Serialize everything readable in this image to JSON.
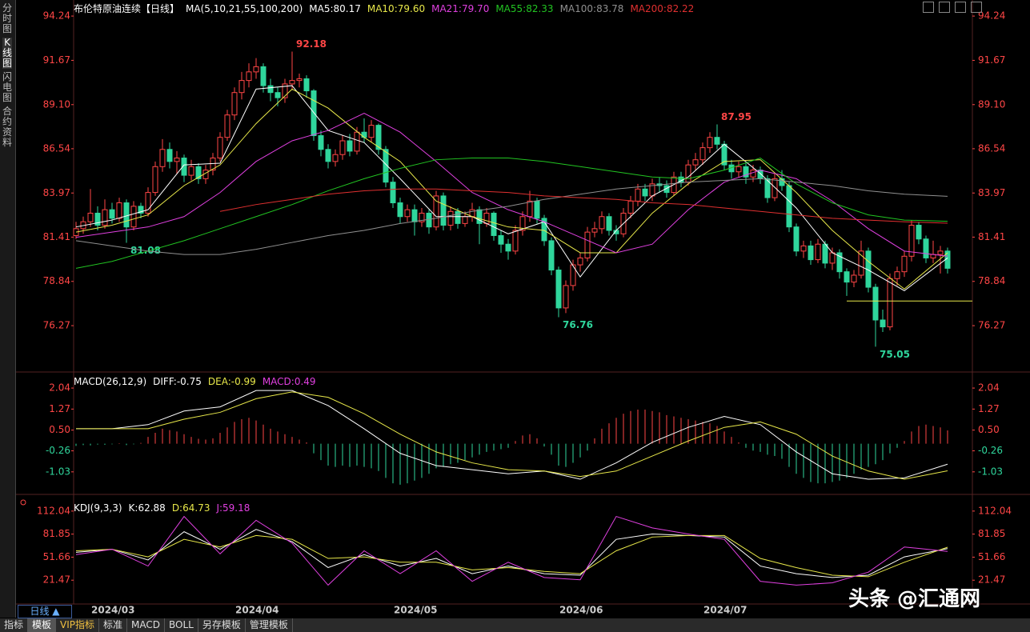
{
  "sidebar": [
    "分时图",
    "K线图",
    "闪电图",
    "合约资料"
  ],
  "chart_data": [
    {
      "type": "candlestick",
      "title": "布伦特原油连续【日线】",
      "subtitle": "MA(5,10,21,55,100,200)",
      "ylim": [
        73.72,
        94.94
      ],
      "yticks": [
        94.24,
        91.67,
        {
          "value": 89.1,
          "label": "89.10"
        },
        86.54,
        83.97,
        81.41,
        78.84,
        76.27
      ],
      "up_color": "#ff4646",
      "down_color": "#2fd69c",
      "open": [
        81.5,
        81.9,
        82.3,
        82.8,
        82.1,
        83.0,
        82.5,
        83.4,
        82.0,
        83.2,
        82.8,
        84.0,
        85.5,
        86.5,
        85.8,
        86.0,
        85.0,
        85.5,
        84.8,
        85.3,
        86.0,
        87.2,
        88.5,
        89.8,
        90.5,
        91.0,
        91.3,
        90.2,
        89.8,
        89.5,
        90.3,
        90.5,
        90.6,
        89.9,
        87.3,
        86.5,
        85.8,
        86.2,
        87.0,
        86.4,
        87.5,
        87.2,
        87.9,
        86.5,
        84.6,
        83.4,
        82.6,
        83.0,
        82.3,
        82.8,
        82.0,
        83.8,
        82.1,
        82.9,
        82.2,
        82.6,
        83.0,
        82.2,
        82.8,
        81.5,
        81.0,
        80.6,
        81.8,
        82.6,
        83.5,
        82.5,
        81.2,
        79.5,
        77.3,
        78.6,
        79.8,
        80.2,
        81.7,
        81.9,
        82.6,
        81.8,
        81.6,
        82.8,
        83.5,
        84.2,
        83.8,
        84.5,
        84.4,
        84.0,
        84.9,
        84.6,
        85.6,
        85.9,
        86.6,
        87.2,
        86.8,
        85.6,
        85.2,
        85.5,
        84.9,
        85.3,
        84.8,
        83.7,
        84.8,
        84.4,
        82.0,
        80.6,
        80.9,
        80.1,
        81.0,
        79.9,
        80.5,
        79.4,
        78.8,
        79.2,
        80.6,
        78.5,
        76.6,
        76.2,
        79.0,
        79.4,
        80.3,
        82.1,
        81.3,
        80.2,
        80.4,
        80.6
      ],
      "high": [
        82.3,
        82.6,
        84.2,
        83.2,
        83.6,
        83.4,
        83.7,
        83.6,
        83.5,
        83.4,
        84.3,
        85.8,
        87.1,
        86.9,
        86.4,
        86.2,
        85.9,
        85.7,
        85.6,
        86.3,
        87.5,
        88.8,
        90.1,
        91.0,
        91.5,
        91.8,
        91.5,
        90.6,
        90.1,
        90.6,
        92.18,
        90.9,
        90.8,
        90.0,
        87.6,
        86.8,
        86.5,
        87.3,
        87.4,
        87.8,
        88.3,
        88.2,
        88.0,
        86.7,
        84.9,
        83.7,
        83.3,
        83.3,
        83.1,
        83.0,
        84.1,
        84.0,
        83.2,
        83.1,
        82.9,
        83.4,
        83.2,
        83.1,
        82.9,
        81.8,
        81.3,
        82.1,
        82.9,
        84.1,
        83.7,
        82.7,
        81.4,
        79.7,
        78.9,
        80.1,
        80.5,
        82.0,
        82.3,
        82.9,
        82.8,
        82.1,
        83.1,
        83.8,
        84.5,
        84.5,
        84.8,
        84.9,
        84.7,
        85.2,
        85.2,
        85.9,
        86.3,
        86.9,
        87.5,
        87.95,
        87.0,
        85.9,
        85.8,
        85.7,
        85.6,
        85.5,
        85.0,
        85.1,
        85.3,
        84.6,
        82.2,
        81.2,
        81.2,
        81.3,
        81.2,
        80.8,
        80.7,
        79.6,
        79.5,
        81.2,
        80.8,
        78.7,
        77.2,
        79.3,
        79.7,
        80.6,
        82.4,
        82.3,
        81.5,
        81.2,
        80.9,
        80.8
      ],
      "low": [
        81.3,
        81.6,
        82.0,
        81.8,
        81.9,
        82.2,
        82.3,
        81.08,
        81.8,
        82.5,
        82.6,
        83.8,
        85.2,
        85.4,
        85.1,
        84.6,
        84.7,
        84.5,
        84.5,
        85.0,
        85.8,
        87.0,
        88.2,
        89.4,
        90.1,
        90.6,
        89.8,
        89.3,
        89.0,
        89.2,
        90.0,
        90.1,
        89.5,
        87.0,
        86.1,
        85.4,
        85.5,
        85.9,
        86.1,
        86.2,
        86.9,
        86.9,
        86.2,
        84.3,
        83.1,
        82.2,
        82.3,
        81.5,
        82.0,
        81.6,
        81.8,
        81.8,
        81.8,
        81.9,
        82.0,
        82.3,
        81.0,
        82.0,
        81.2,
        80.5,
        80.1,
        80.4,
        81.5,
        82.3,
        82.2,
        80.9,
        79.2,
        76.76,
        77.0,
        78.3,
        79.4,
        80.0,
        81.4,
        81.6,
        81.5,
        81.2,
        81.4,
        82.5,
        83.2,
        83.5,
        83.5,
        84.0,
        83.7,
        83.8,
        84.3,
        84.4,
        85.3,
        85.6,
        86.3,
        86.5,
        85.3,
        84.8,
        84.9,
        84.5,
        84.6,
        84.5,
        83.4,
        83.5,
        84.1,
        81.7,
        80.3,
        80.2,
        79.8,
        79.9,
        79.6,
        79.5,
        79.0,
        78.0,
        78.5,
        79.0,
        78.2,
        75.05,
        75.9,
        76.0,
        78.6,
        79.1,
        80.0,
        81.0,
        79.9,
        79.9,
        79.3,
        79.3
      ],
      "close": [
        81.9,
        82.3,
        82.8,
        82.1,
        83.0,
        82.5,
        83.4,
        82.0,
        83.2,
        82.8,
        84.0,
        85.5,
        86.5,
        85.8,
        86.0,
        85.0,
        85.5,
        84.8,
        85.3,
        86.0,
        87.2,
        88.5,
        89.8,
        90.5,
        91.0,
        91.3,
        90.2,
        89.8,
        89.5,
        90.3,
        90.5,
        90.6,
        89.9,
        87.3,
        86.5,
        85.8,
        86.2,
        87.0,
        86.4,
        87.5,
        87.2,
        87.9,
        86.5,
        84.6,
        83.4,
        82.6,
        83.0,
        82.3,
        82.8,
        82.0,
        83.8,
        82.1,
        82.9,
        82.2,
        82.6,
        83.0,
        82.2,
        82.8,
        81.5,
        81.0,
        80.6,
        81.8,
        82.6,
        83.5,
        82.5,
        81.2,
        79.5,
        77.3,
        78.6,
        79.8,
        80.2,
        81.7,
        81.9,
        82.6,
        81.8,
        81.6,
        82.8,
        83.5,
        84.2,
        83.8,
        84.5,
        84.4,
        84.0,
        84.9,
        84.6,
        85.6,
        85.9,
        86.6,
        87.2,
        86.8,
        85.6,
        85.2,
        85.5,
        84.9,
        85.3,
        84.8,
        83.7,
        84.8,
        84.4,
        82.0,
        80.6,
        80.9,
        80.1,
        81.0,
        79.9,
        80.5,
        79.4,
        78.8,
        79.2,
        80.6,
        78.5,
        76.6,
        76.2,
        79.0,
        79.4,
        80.3,
        82.1,
        81.3,
        80.2,
        80.4,
        80.6,
        79.6
      ],
      "annotations": [
        {
          "index": 30,
          "value": 92.18
        },
        {
          "index": 7,
          "value": 81.08
        },
        {
          "index": 67,
          "value": 76.76
        },
        {
          "index": 89,
          "value": 87.95
        },
        {
          "index": 111,
          "value": 75.05
        }
      ],
      "hline": {
        "value": 77.7,
        "start": 107,
        "color": "#e8e84a"
      },
      "series_x": [
        0,
        5,
        10,
        15,
        20,
        25,
        30,
        35,
        40,
        45,
        50,
        55,
        60,
        65,
        70,
        75,
        80,
        85,
        90,
        95,
        100,
        105,
        110,
        115,
        121
      ],
      "series": [
        {
          "label": "MA5:80.17",
          "color": "#ffffff",
          "values": [
            82.0,
            82.4,
            83.0,
            85.6,
            85.7,
            90.0,
            90.2,
            87.6,
            86.9,
            84.8,
            82.6,
            82.6,
            81.6,
            82.3,
            79.1,
            81.8,
            83.8,
            84.9,
            86.8,
            85.1,
            83.1,
            80.5,
            79.5,
            78.3,
            80.2
          ]
        },
        {
          "label": "MA10:79.60",
          "color": "#e8e84a",
          "values": [
            81.7,
            82.1,
            82.7,
            84.4,
            85.6,
            88.0,
            90.0,
            88.9,
            87.2,
            85.8,
            83.5,
            82.6,
            82.0,
            81.8,
            80.5,
            80.5,
            82.8,
            84.5,
            85.8,
            85.9,
            84.0,
            81.8,
            80.0,
            78.4,
            80.5
          ]
        },
        {
          "label": "MA21:79.70",
          "color": "#e040e0",
          "values": [
            81.4,
            81.7,
            82.0,
            82.6,
            84.0,
            85.8,
            87.0,
            87.6,
            88.6,
            87.5,
            85.8,
            84.0,
            83.0,
            82.3,
            81.4,
            80.5,
            81.0,
            83.0,
            84.6,
            85.3,
            84.8,
            83.5,
            81.9,
            80.6,
            80.3
          ]
        },
        {
          "label": "MA55:82.33",
          "color": "#22c422",
          "values": [
            79.6,
            80.0,
            80.6,
            81.2,
            81.9,
            82.6,
            83.3,
            84.1,
            84.8,
            85.4,
            85.9,
            86.0,
            86.0,
            85.8,
            85.5,
            85.2,
            84.9,
            84.8,
            85.3,
            86.0,
            84.5,
            83.4,
            82.7,
            82.4,
            82.33
          ]
        },
        {
          "label": "MA100:83.78",
          "color": "#909090",
          "values": [
            81.2,
            80.9,
            80.6,
            80.4,
            80.4,
            80.7,
            81.1,
            81.5,
            81.8,
            82.2,
            82.5,
            82.9,
            83.2,
            83.6,
            83.9,
            84.2,
            84.4,
            84.6,
            84.7,
            84.8,
            84.6,
            84.4,
            84.1,
            83.9,
            83.78
          ]
        },
        {
          "label": "MA200:82.22",
          "color": "#e03030",
          "values": [
            null,
            null,
            null,
            null,
            82.9,
            83.3,
            83.6,
            83.9,
            84.1,
            84.2,
            84.2,
            84.1,
            84.0,
            83.8,
            83.7,
            83.6,
            83.4,
            83.3,
            83.1,
            82.9,
            82.7,
            82.5,
            82.4,
            82.3,
            82.22
          ]
        }
      ]
    },
    {
      "type": "macd",
      "title": "MACD(26,12,9)",
      "ylim": [
        -1.68,
        2.54
      ],
      "yticks": [
        2.04,
        1.27,
        {
          "value": 0.5,
          "label": "0.50"
        },
        -0.26,
        -1.03
      ],
      "up_color": "#ff4646",
      "down_color": "#2fd69c",
      "histogram_label": "MACD:0.49",
      "histogram_color": "#e040e0",
      "histogram": [
        -0.08,
        -0.05,
        -0.06,
        -0.03,
        -0.04,
        -0.02,
        0.02,
        -0.05,
        -0.02,
        0.03,
        0.25,
        0.4,
        0.55,
        0.5,
        0.45,
        0.35,
        0.25,
        0.18,
        0.15,
        0.2,
        0.4,
        0.6,
        0.8,
        0.9,
        0.95,
        0.85,
        0.7,
        0.55,
        0.45,
        0.35,
        0.25,
        0.15,
        0.05,
        -0.35,
        -0.6,
        -0.8,
        -0.85,
        -0.8,
        -0.85,
        -0.8,
        -0.85,
        -0.9,
        -1.0,
        -1.25,
        -1.45,
        -1.5,
        -1.45,
        -1.35,
        -1.25,
        -1.1,
        -0.9,
        -0.85,
        -0.75,
        -0.7,
        -0.6,
        -0.5,
        -0.4,
        -0.3,
        -0.25,
        -0.2,
        -0.15,
        0.1,
        0.3,
        0.35,
        0.2,
        -0.1,
        -0.4,
        -0.8,
        -0.85,
        -0.7,
        -0.5,
        -0.25,
        0.2,
        0.55,
        0.75,
        0.95,
        1.1,
        1.2,
        1.25,
        1.25,
        1.2,
        1.15,
        1.05,
        1.0,
        0.95,
        0.9,
        0.85,
        0.8,
        0.75,
        0.65,
        0.45,
        0.25,
        0.05,
        -0.15,
        -0.25,
        -0.3,
        -0.4,
        -0.45,
        -0.55,
        -0.85,
        -1.1,
        -1.25,
        -1.4,
        -1.45,
        -1.45,
        -1.4,
        -1.35,
        -1.25,
        -1.1,
        -0.95,
        -0.85,
        -0.75,
        -0.6,
        -0.35,
        -0.15,
        0.1,
        0.45,
        0.65,
        0.7,
        0.65,
        0.6,
        0.49
      ],
      "series_x": [
        0,
        5,
        10,
        15,
        20,
        25,
        30,
        35,
        40,
        45,
        50,
        55,
        60,
        65,
        70,
        75,
        80,
        85,
        90,
        95,
        100,
        105,
        110,
        115,
        121
      ],
      "series": [
        {
          "label": "DIFF:-0.75",
          "color": "#ffffff",
          "values": [
            0.55,
            0.55,
            0.7,
            1.2,
            1.35,
            1.95,
            1.95,
            1.4,
            0.55,
            -0.35,
            -0.8,
            -0.95,
            -1.1,
            -1.0,
            -1.3,
            -0.7,
            0.05,
            0.6,
            1.0,
            0.7,
            -0.3,
            -1.1,
            -1.3,
            -1.25,
            -0.75
          ]
        },
        {
          "label": "DEA:-0.99",
          "color": "#e8e84a",
          "values": [
            0.55,
            0.55,
            0.55,
            0.9,
            1.15,
            1.65,
            1.9,
            1.7,
            1.1,
            0.35,
            -0.3,
            -0.7,
            -0.95,
            -1.0,
            -1.2,
            -1.0,
            -0.45,
            0.1,
            0.6,
            0.8,
            0.35,
            -0.45,
            -1.0,
            -1.3,
            -0.99
          ]
        }
      ]
    },
    {
      "type": "line",
      "title": "KDJ(9,3,3)",
      "ylim": [
        -6.6,
        129.7
      ],
      "yticks": [
        112.04,
        81.85,
        51.66,
        21.47
      ],
      "series_x": [
        0,
        5,
        10,
        15,
        20,
        25,
        30,
        35,
        40,
        45,
        50,
        55,
        60,
        65,
        70,
        75,
        80,
        85,
        90,
        95,
        100,
        105,
        110,
        115,
        121
      ],
      "series": [
        {
          "label": "K:62.88",
          "color": "#ffffff",
          "values": [
            58,
            62,
            48,
            85,
            62,
            88,
            72,
            38,
            55,
            40,
            50,
            30,
            40,
            30,
            28,
            75,
            82,
            80,
            78,
            40,
            30,
            25,
            28,
            52,
            62.88
          ]
        },
        {
          "label": "D:64.73",
          "color": "#e8e84a",
          "values": [
            60,
            62,
            52,
            75,
            65,
            80,
            75,
            50,
            52,
            45,
            45,
            35,
            38,
            33,
            30,
            60,
            78,
            80,
            80,
            50,
            38,
            28,
            26,
            45,
            64.73
          ]
        },
        {
          "label": "J:59.18",
          "color": "#e040e0",
          "values": [
            55,
            62,
            40,
            105,
            56,
            100,
            70,
            15,
            60,
            30,
            60,
            20,
            45,
            25,
            22,
            105,
            90,
            82,
            75,
            20,
            15,
            18,
            32,
            65,
            59.18
          ]
        }
      ]
    }
  ],
  "date_axis": {
    "tab": "日线 ▲",
    "labels": [
      {
        "index": 1,
        "label": "2024/03"
      },
      {
        "index": 21,
        "label": "2024/04"
      },
      {
        "index": 43,
        "label": "2024/05"
      },
      {
        "index": 66,
        "label": "2024/06"
      },
      {
        "index": 86,
        "label": "2024/07"
      }
    ]
  },
  "toolbar": [
    "指标",
    "模板",
    "VIP指标",
    "标准",
    "MACD",
    "BOLL",
    "另存模板",
    "管理模板"
  ],
  "watermark": "头条 @汇通网"
}
